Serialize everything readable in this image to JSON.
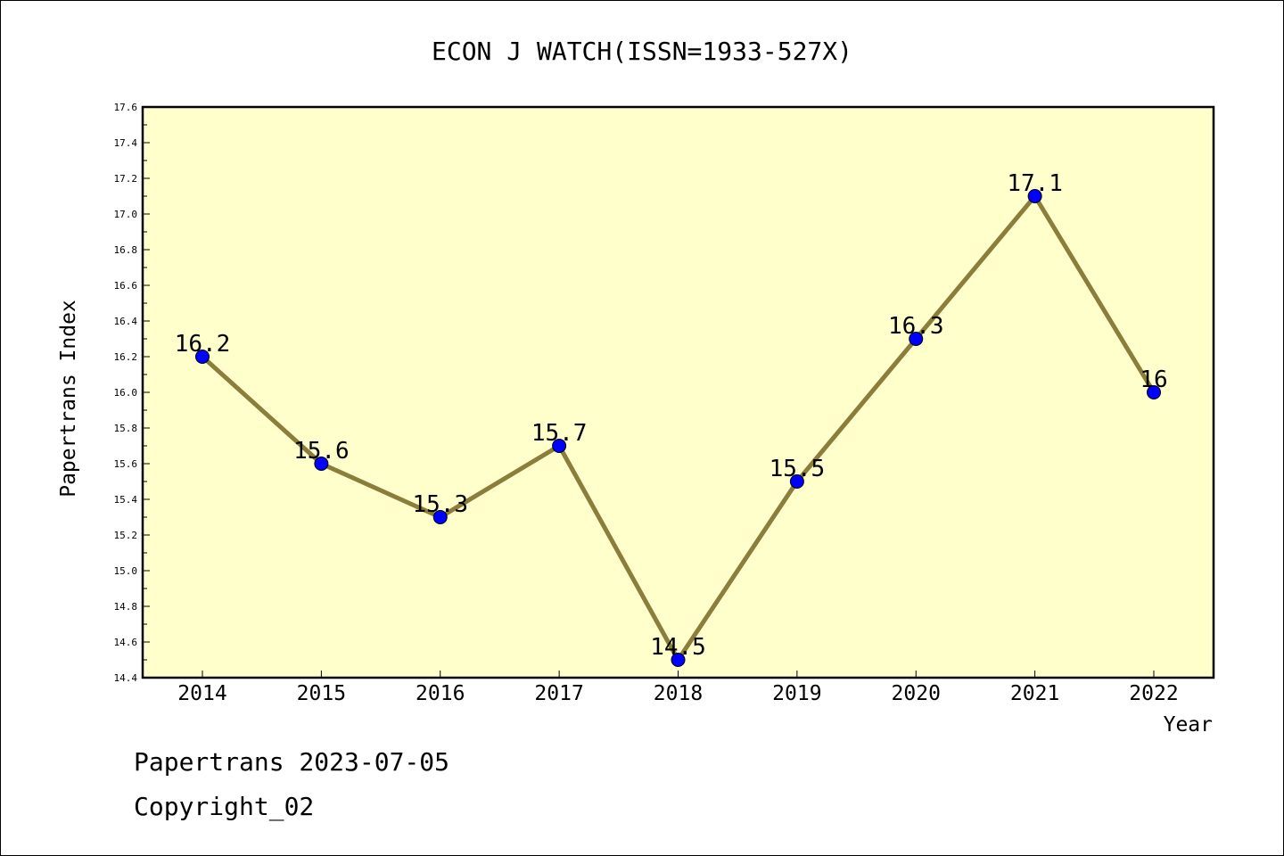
{
  "chart_data": {
    "type": "line",
    "title": "ECON J WATCH(ISSN=1933-527X)",
    "xlabel": "Year",
    "ylabel": "Papertrans Index",
    "categories": [
      "2014",
      "2015",
      "2016",
      "2017",
      "2018",
      "2019",
      "2020",
      "2021",
      "2022"
    ],
    "values": [
      16.2,
      15.6,
      15.3,
      15.7,
      14.5,
      15.5,
      16.3,
      17.1,
      16
    ],
    "value_labels": [
      "16.2",
      "15.6",
      "15.3",
      "15.7",
      "14.5",
      "15.5",
      "16.3",
      "17.1",
      "16"
    ],
    "ylim": [
      14.4,
      17.6
    ],
    "yticks": [
      "14.4",
      "14.6",
      "14.8",
      "15.0",
      "15.2",
      "15.4",
      "15.6",
      "15.8",
      "16.0",
      "16.2",
      "16.4",
      "16.6",
      "16.8",
      "17.0",
      "17.2",
      "17.4",
      "17.6"
    ],
    "grid": false,
    "colors": {
      "plot_background": "#ffffcc",
      "line": "#8b7d3a",
      "marker": "#0000ff"
    }
  },
  "footer": {
    "line1": "Papertrans 2023-07-05",
    "line2": "Copyright_02"
  }
}
